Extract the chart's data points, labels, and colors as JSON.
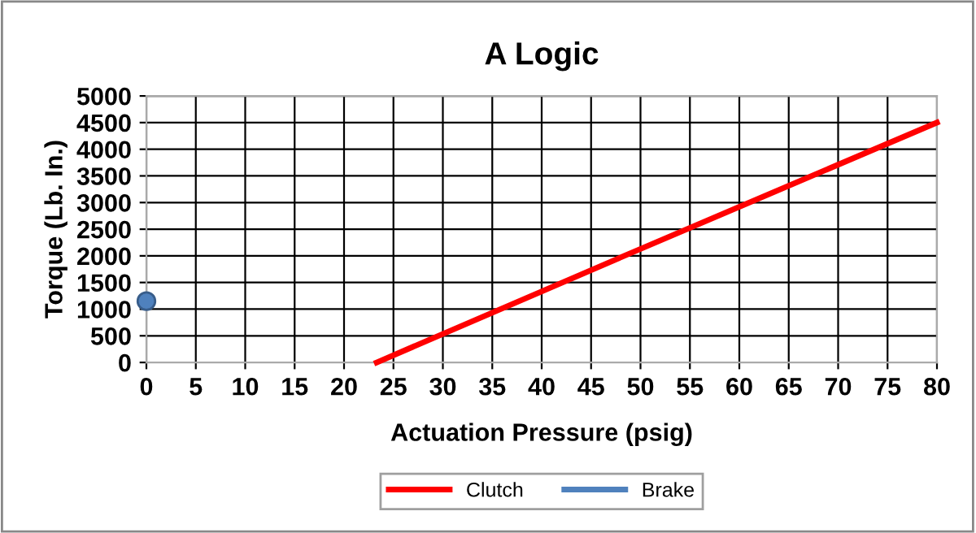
{
  "chart_data": {
    "type": "line",
    "title": "A Logic",
    "xlabel": "Actuation Pressure (psig)",
    "ylabel": "Torque (Lb. In.)",
    "xlim": [
      0,
      80
    ],
    "xticks": [
      0,
      5,
      10,
      15,
      20,
      25,
      30,
      35,
      40,
      45,
      50,
      55,
      60,
      65,
      70,
      75,
      80
    ],
    "ylim": [
      0,
      5000
    ],
    "yticks": [
      0,
      500,
      1000,
      1500,
      2000,
      2500,
      3000,
      3500,
      4000,
      4500,
      5000
    ],
    "grid": true,
    "legend": "bottom",
    "series": [
      {
        "name": "Clutch",
        "color": "#ff0000",
        "x": [
          23.3,
          50,
          80
        ],
        "values": [
          0,
          2130,
          4500
        ]
      },
      {
        "name": "Brake",
        "type": "scatter",
        "color": "#4f81bd",
        "marker": "circle",
        "x": [
          0
        ],
        "values": [
          1150
        ]
      }
    ]
  }
}
